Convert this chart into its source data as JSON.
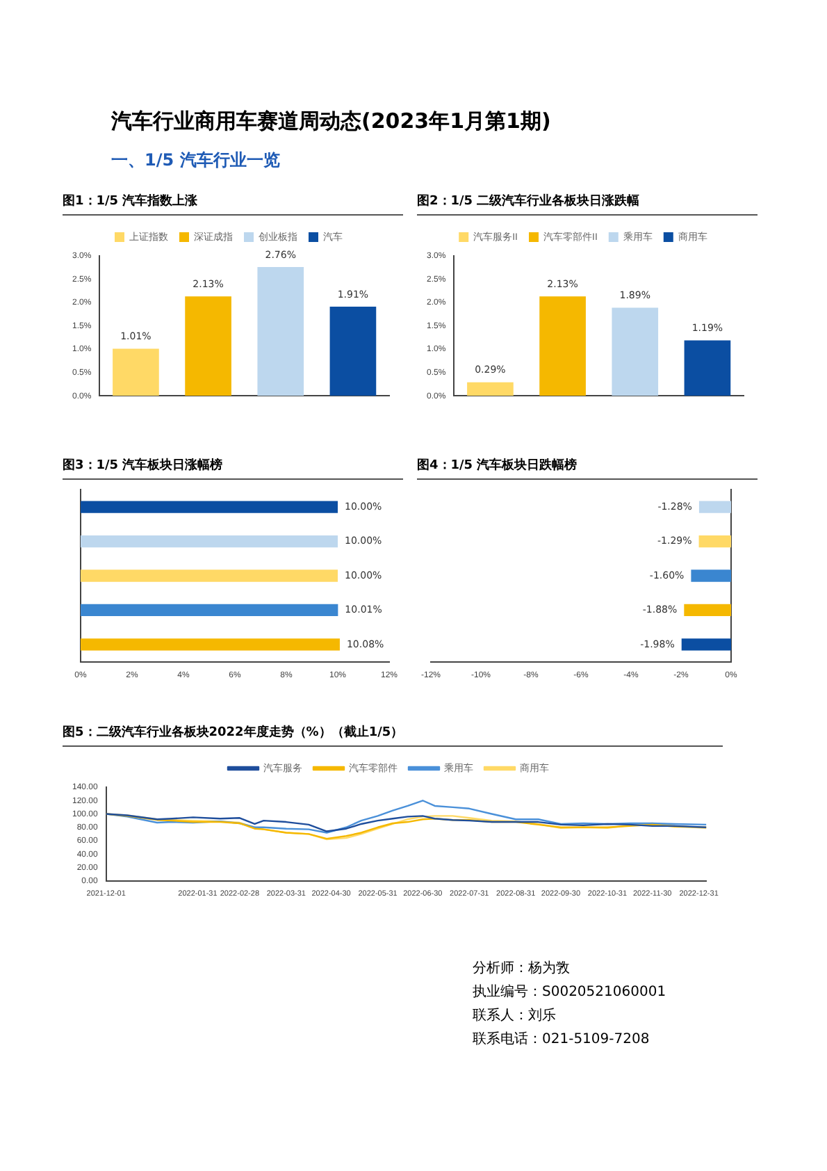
{
  "chart_data": [
    {
      "type": "bar",
      "title": "图1：1/5 汽车指数上涨",
      "annotations": [
        "汽车行业商用车赛道周动态(2023年1月第1期)",
        "一、1/5 汽车行业一览"
      ],
      "categories": [
        null,
        null,
        null,
        null
      ],
      "stacked": true,
      "legend": "top",
      "series": [
        {
          "name": "上证指数",
          "color": "#ffd966",
          "values": [
            1.01,
            null,
            null,
            null
          ],
          "value_labels": [
            "1.01%",
            null,
            null,
            null
          ]
        },
        {
          "name": "深证成指",
          "color": "#f5b800",
          "values": [
            null,
            2.13,
            null,
            null
          ],
          "value_labels": [
            null,
            "2.13%",
            null,
            null
          ]
        },
        {
          "name": "创业板指",
          "color": "#bdd7ee",
          "values": [
            null,
            null,
            2.76,
            null
          ],
          "value_labels": [
            null,
            null,
            "2.76%",
            null
          ]
        },
        {
          "name": "汽车",
          "color": "#0b4ea2",
          "values": [
            null,
            null,
            null,
            1.91
          ],
          "value_labels": [
            null,
            null,
            null,
            "1.91%"
          ]
        }
      ],
      "ylim": [
        0,
        3
      ],
      "yticks": [
        {
          "value": 0,
          "label": "0.0%"
        },
        {
          "value": 0.5,
          "label": "0.5%"
        },
        {
          "value": 1,
          "label": "1.0%"
        },
        {
          "value": 1.5,
          "label": "1.5%"
        },
        {
          "value": 2,
          "label": "2.0%"
        },
        {
          "value": 2.5,
          "label": "2.5%"
        },
        {
          "value": 3,
          "label": "3.0%"
        }
      ]
    },
    {
      "type": "bar",
      "title": "图2：1/5 二级汽车行业各板块日涨跌幅",
      "categories": [
        null,
        null,
        null,
        null
      ],
      "stacked": true,
      "legend": "top",
      "series": [
        {
          "name": "汽车服务II",
          "color": "#ffd966",
          "values": [
            0.29,
            null,
            null,
            null
          ],
          "value_labels": [
            "0.29%",
            null,
            null,
            null
          ]
        },
        {
          "name": "汽车零部件II",
          "color": "#f5b800",
          "values": [
            null,
            2.13,
            null,
            null
          ],
          "value_labels": [
            null,
            "2.13%",
            null,
            null
          ]
        },
        {
          "name": "乘用车",
          "color": "#bdd7ee",
          "values": [
            null,
            null,
            1.89,
            null
          ],
          "value_labels": [
            null,
            null,
            "1.89%",
            null
          ]
        },
        {
          "name": "商用车",
          "color": "#0b4ea2",
          "values": [
            null,
            null,
            null,
            1.19
          ],
          "value_labels": [
            null,
            null,
            null,
            "1.19%"
          ]
        }
      ],
      "ylim": [
        0,
        3
      ],
      "yticks": [
        {
          "value": 0,
          "label": "0.0%"
        },
        {
          "value": 0.5,
          "label": "0.5%"
        },
        {
          "value": 1,
          "label": "1.0%"
        },
        {
          "value": 1.5,
          "label": "1.5%"
        },
        {
          "value": 2,
          "label": "2.0%"
        },
        {
          "value": 2.5,
          "label": "2.5%"
        },
        {
          "value": 3,
          "label": "3.0%"
        }
      ]
    },
    {
      "type": "bar",
      "title": "图3：1/5 汽车板块日涨幅榜",
      "orientation": "horizontal",
      "categories": [
        null,
        null,
        null,
        null,
        null
      ],
      "values": [
        10.0,
        10.0,
        10.0,
        10.01,
        10.08
      ],
      "colors": [
        "#0b4ea2",
        "#bdd7ee",
        "#ffd966",
        "#3a86d0",
        "#f5b800"
      ],
      "value_labels": [
        "10.00%",
        "10.00%",
        "10.00%",
        "10.01%",
        "10.08%"
      ],
      "xlim": [
        0,
        12
      ],
      "xticks": [
        {
          "value": 0,
          "label": "0%"
        },
        {
          "value": 2,
          "label": "2%"
        },
        {
          "value": 4,
          "label": "4%"
        },
        {
          "value": 6,
          "label": "6%"
        },
        {
          "value": 8,
          "label": "8%"
        },
        {
          "value": 10,
          "label": "10%"
        },
        {
          "value": 12,
          "label": "12%"
        }
      ]
    },
    {
      "type": "bar",
      "title": "图4：1/5 汽车板块日跌幅榜",
      "orientation": "horizontal",
      "categories": [
        null,
        null,
        null,
        null,
        null
      ],
      "values": [
        -1.28,
        -1.29,
        -1.6,
        -1.88,
        -1.98
      ],
      "colors": [
        "#bdd7ee",
        "#ffd966",
        "#3a86d0",
        "#f5b800",
        "#0b4ea2"
      ],
      "value_labels": [
        "-1.28%",
        "-1.29%",
        "-1.60%",
        "-1.88%",
        "-1.98%"
      ],
      "xlim": [
        -12,
        0
      ],
      "xticks": [
        {
          "value": -12,
          "label": "-12%"
        },
        {
          "value": -10,
          "label": "-10%"
        },
        {
          "value": -8,
          "label": "-8%"
        },
        {
          "value": -6,
          "label": "-6%"
        },
        {
          "value": -4,
          "label": "-4%"
        },
        {
          "value": -2,
          "label": "-2%"
        },
        {
          "value": 0,
          "label": "0%"
        }
      ]
    },
    {
      "type": "line",
      "title": "图5：二级汽车行业各板块2022年度走势（%）（截止1/5）",
      "legend": "top",
      "marker": "none",
      "annotations": [
        "分析师：杨为敩",
        "执业编号：S0020521060001",
        "联系人：刘乐",
        "联系电话：021-5109-7208"
      ],
      "x": [
        "2021-12-01",
        "2021-12-15",
        "2022-01-04",
        "2022-01-14",
        "2022-01-28",
        "2022-02-15",
        "2022-02-28",
        "2022-03-10",
        "2022-03-16",
        "2022-03-31",
        "2022-04-15",
        "2022-04-27",
        "2022-05-10",
        "2022-05-20",
        "2022-05-31",
        "2022-06-10",
        "2022-06-20",
        "2022-06-30",
        "2022-07-08",
        "2022-07-20",
        "2022-07-31",
        "2022-08-15",
        "2022-08-31",
        "2022-09-15",
        "2022-09-30",
        "2022-10-15",
        "2022-10-31",
        "2022-11-15",
        "2022-11-30",
        "2022-12-15",
        "2023-01-05"
      ],
      "series": [
        {
          "name": "汽车服务",
          "color": "#1f4e9c",
          "values": [
            100,
            98,
            92,
            93,
            95,
            93,
            94,
            85,
            90,
            88,
            84,
            74,
            78,
            85,
            90,
            93,
            96,
            97,
            93,
            91,
            90,
            88,
            88,
            88,
            84,
            83,
            85,
            84,
            82,
            82,
            80
          ]
        },
        {
          "name": "汽车零部件",
          "color": "#f5b800",
          "values": [
            100,
            97,
            91,
            90,
            88,
            88,
            86,
            78,
            77,
            72,
            70,
            63,
            67,
            72,
            80,
            86,
            88,
            92,
            93,
            91,
            91,
            88,
            88,
            84,
            80,
            80,
            80,
            82,
            84,
            81,
            80
          ]
        },
        {
          "name": "乘用车",
          "color": "#4a90d9",
          "values": [
            100,
            96,
            87,
            88,
            87,
            89,
            86,
            80,
            80,
            78,
            77,
            72,
            80,
            90,
            97,
            105,
            112,
            120,
            112,
            110,
            108,
            100,
            92,
            92,
            85,
            86,
            85,
            86,
            86,
            85,
            84
          ]
        },
        {
          "name": "商用车",
          "color": "#ffd966",
          "values": [
            100,
            98,
            92,
            91,
            90,
            89,
            87,
            80,
            77,
            72,
            70,
            62,
            64,
            70,
            78,
            85,
            92,
            96,
            97,
            97,
            94,
            90,
            89,
            85,
            79,
            80,
            79,
            83,
            86,
            82,
            79
          ]
        }
      ],
      "xlim": [
        "2021-12-01",
        "2023-01-05"
      ],
      "xticks": [
        "2021-12-01",
        "2022-01-31",
        "2022-02-28",
        "2022-03-31",
        "2022-04-30",
        "2022-05-31",
        "2022-06-30",
        "2022-07-31",
        "2022-08-31",
        "2022-09-30",
        "2022-10-31",
        "2022-11-30",
        "2022-12-31"
      ],
      "ylim": [
        0,
        140
      ],
      "yticks": [
        {
          "value": 0,
          "label": "0.00"
        },
        {
          "value": 20,
          "label": "20.00"
        },
        {
          "value": 40,
          "label": "40.00"
        },
        {
          "value": 60,
          "label": "60.00"
        },
        {
          "value": 80,
          "label": "80.00"
        },
        {
          "value": 100,
          "label": "100.00"
        },
        {
          "value": 120,
          "label": "120.00"
        },
        {
          "value": 140,
          "label": "140.00"
        }
      ]
    }
  ]
}
